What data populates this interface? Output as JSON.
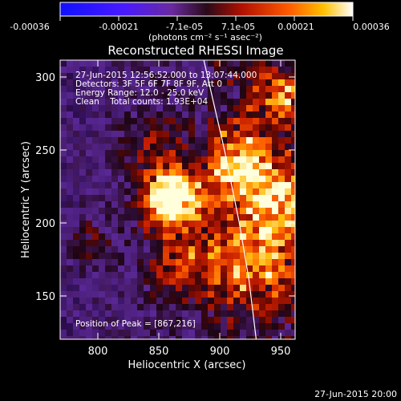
{
  "colorbar": {
    "tick_labels": [
      "-0.00036",
      "-0.00021",
      "-7.1e-05",
      "7.1e-05",
      "0.00021",
      "0.00036"
    ],
    "unit_label": "(photons cm⁻² s⁻¹ asec⁻²)"
  },
  "plot": {
    "title": "Reconstructed RHESSI Image",
    "xlabel": "Heliocentric X (arcsec)",
    "ylabel": "Heliocentric Y (arcsec)",
    "x_ticks": [
      "800",
      "850",
      "900",
      "950"
    ],
    "y_ticks": [
      "150",
      "200",
      "250",
      "300"
    ],
    "xlim": [
      775,
      968
    ],
    "ylim": [
      118,
      313
    ]
  },
  "annotations": {
    "time_range": "27-Jun-2015 12:56:52.000 to 13:07:44.000",
    "detectors": "Detectors: 3F 5F 6F 7F 8F 9F, Att 0",
    "energy": "Energy Range: 12.0 - 25.0 keV",
    "clean": "Clean    Total counts: 1.93E+04",
    "peak": "Position of Peak = [867,216]"
  },
  "footer": {
    "timestamp": "27-Jun-2015 20:00"
  },
  "image_features": {
    "peak_x": 867,
    "peak_y": 216,
    "colormap": "blue-purple-red-yellow-white",
    "limb_curve": [
      [
        893,
        313
      ],
      [
        910,
        250
      ],
      [
        922,
        200
      ],
      [
        930,
        160
      ],
      [
        936,
        118
      ]
    ]
  }
}
